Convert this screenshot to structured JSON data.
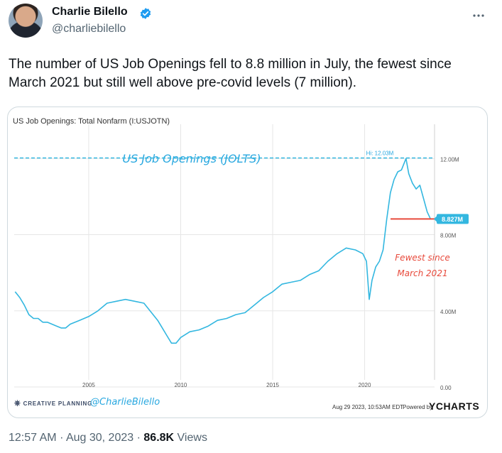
{
  "tweet": {
    "author_name": "Charlie Bilello",
    "author_handle": "@charliebilello",
    "text": "The number of US Job Openings fell to 8.8 million in July, the fewest since March 2021 but still well above pre-covid levels (7 million).",
    "time": "12:57 AM",
    "date": "Aug 30, 2023",
    "views_count": "86.8K",
    "views_label": "Views",
    "separator": "·"
  },
  "chart_data": {
    "type": "line",
    "header": "US Job Openings: Total Nonfarm (I:USJOTN)",
    "title": "US Job Openings (JOLTS)",
    "x": [
      2001.0,
      2001.25,
      2001.5,
      2001.75,
      2002.0,
      2002.25,
      2002.5,
      2002.75,
      2003.0,
      2003.25,
      2003.5,
      2003.75,
      2004.0,
      2004.5,
      2005.0,
      2005.5,
      2006.0,
      2006.5,
      2007.0,
      2007.5,
      2008.0,
      2008.5,
      2008.75,
      2009.0,
      2009.25,
      2009.5,
      2009.75,
      2010.0,
      2010.5,
      2011.0,
      2011.5,
      2012.0,
      2012.5,
      2013.0,
      2013.5,
      2014.0,
      2014.5,
      2015.0,
      2015.5,
      2016.0,
      2016.5,
      2017.0,
      2017.5,
      2018.0,
      2018.5,
      2019.0,
      2019.5,
      2019.9,
      2020.1,
      2020.25,
      2020.4,
      2020.6,
      2020.8,
      2021.0,
      2021.2,
      2021.4,
      2021.6,
      2021.8,
      2022.0,
      2022.25,
      2022.4,
      2022.6,
      2022.8,
      2023.0,
      2023.2,
      2023.4,
      2023.58
    ],
    "y": [
      5.0,
      4.7,
      4.3,
      3.8,
      3.6,
      3.6,
      3.4,
      3.4,
      3.3,
      3.2,
      3.1,
      3.1,
      3.3,
      3.5,
      3.7,
      4.0,
      4.4,
      4.5,
      4.6,
      4.5,
      4.4,
      3.8,
      3.5,
      3.1,
      2.7,
      2.3,
      2.3,
      2.6,
      2.9,
      3.0,
      3.2,
      3.5,
      3.6,
      3.8,
      3.9,
      4.3,
      4.7,
      5.0,
      5.4,
      5.5,
      5.6,
      5.9,
      6.1,
      6.6,
      7.0,
      7.3,
      7.2,
      7.0,
      6.6,
      4.6,
      5.6,
      6.3,
      6.6,
      7.2,
      8.8,
      10.2,
      10.9,
      11.3,
      11.4,
      12.0,
      11.2,
      10.7,
      10.4,
      10.6,
      9.9,
      9.2,
      8.827
    ],
    "xticks": [
      "2005",
      "2010",
      "2015",
      "2020"
    ],
    "yticks": [
      "0.00",
      "4.00M",
      "8.00M",
      "12.00M"
    ],
    "high_label": "Hi: 12.03M",
    "high_value": 12.03,
    "last_value_label": "8.827M",
    "last_value": 8.827,
    "annotation": [
      "Fewest since",
      "March 2021"
    ],
    "annotation_line_value": 8.827,
    "ylim": [
      0,
      13.8
    ],
    "xlim": [
      2000.95,
      2023.8
    ],
    "colors": {
      "line": "#33b7e0",
      "high_line": "#33b7e0",
      "marker_line": "#e84a3c",
      "annotation": "#e84a3c",
      "title": "#29a8e0"
    }
  },
  "footer": {
    "brand": "CREATIVE PLANNING",
    "handle": "@CharlieBilello",
    "date": "Aug 29 2023, 10:53AM EDT.",
    "powered": "Powered by",
    "ycharts": "YCHARTS"
  },
  "icons": {
    "verified": "verified-badge-icon",
    "more": "more-horizontal-icon",
    "brand": "creative-planning-logo-icon"
  }
}
